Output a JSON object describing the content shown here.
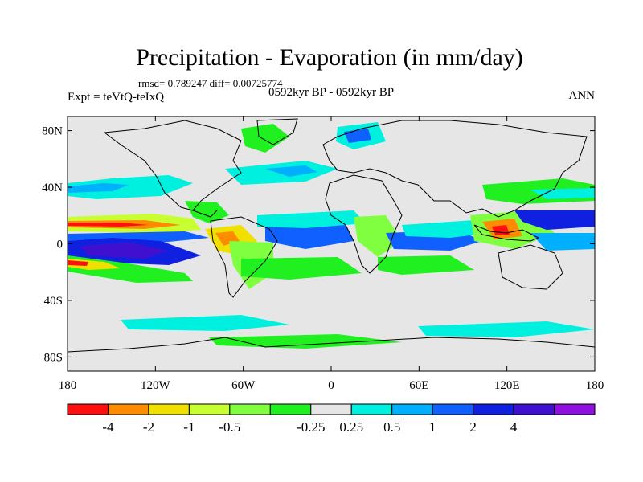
{
  "title": "Precipitation - Evaporation (in mm/day)",
  "stats": "rmsd= 0.789247 diff= 0.00725774",
  "experiment": "Expt = teVtQ-teIxQ",
  "period": "0592kyr BP - 0592kyr BP",
  "season": "ANN",
  "lat_ticks": [
    "80N",
    "40N",
    "0",
    "40S",
    "80S"
  ],
  "lon_ticks": [
    "180",
    "120W",
    "60W",
    "0",
    "60E",
    "120E",
    "180"
  ],
  "colorbar": {
    "colors": [
      "#ff1010",
      "#ff8c00",
      "#f0e000",
      "#c8ff30",
      "#80ff40",
      "#20f020",
      "#e6e6e6",
      "#00f0e0",
      "#00b0ff",
      "#1060ff",
      "#1020e0",
      "#4010d0",
      "#9010e0"
    ],
    "labels": [
      "-4",
      "-2",
      "-1",
      "-0.5",
      "-0.25",
      "0.25",
      "0.5",
      "1",
      "2",
      "4"
    ]
  },
  "map_colors": {
    "land_outline": "#000000",
    "background": "#e6e6e6"
  }
}
